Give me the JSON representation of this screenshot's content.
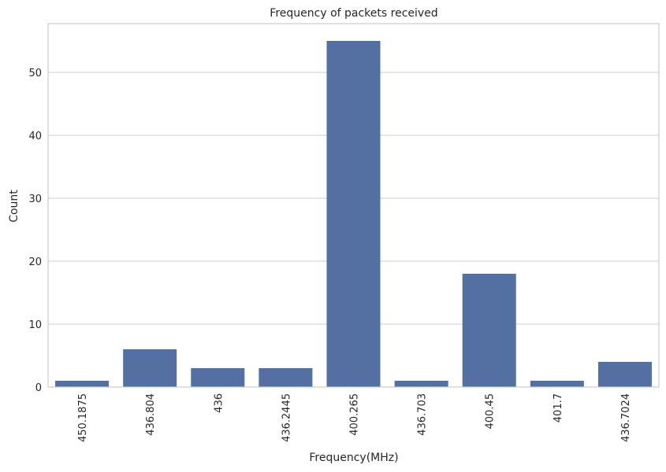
{
  "chart_data": {
    "type": "bar",
    "title": "Frequency of packets received",
    "xlabel": "Frequency(MHz)",
    "ylabel": "Count",
    "categories": [
      "450.1875",
      "436.804",
      "436",
      "436.2445",
      "400.265",
      "436.703",
      "400.45",
      "401.7",
      "436.7024"
    ],
    "values": [
      1,
      6,
      3,
      3,
      55,
      1,
      18,
      1,
      4
    ],
    "ylim": [
      0,
      57.75
    ],
    "yticks": [
      0,
      10,
      20,
      30,
      40,
      50
    ],
    "grid": "horizontal",
    "bar_color": "#5470a3",
    "legend": "none"
  }
}
